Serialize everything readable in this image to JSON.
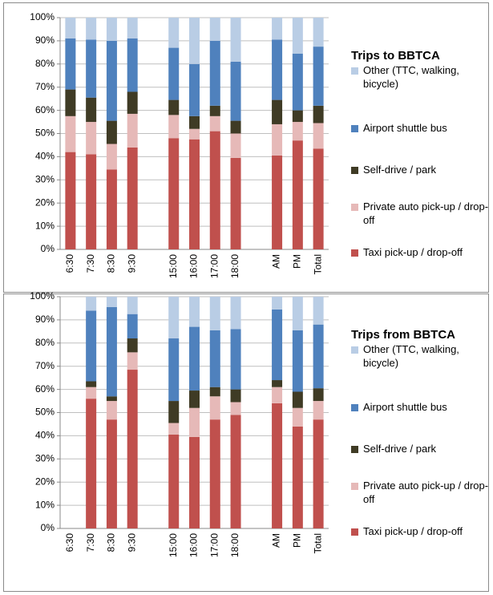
{
  "chart_data": [
    {
      "type": "bar",
      "stacked": true,
      "title": "Trips to BBTCA",
      "legend": "right",
      "grid": true,
      "categories": [
        "6:30",
        "7:30",
        "8:30",
        "9:30",
        null,
        "15:00",
        "16:00",
        "17:00",
        "18:00",
        null,
        "AM",
        "PM",
        "Total"
      ],
      "ylim": [
        0,
        100
      ],
      "yticks": [
        {
          "value": 0,
          "label": "0%"
        },
        {
          "value": 10,
          "label": "10%"
        },
        {
          "value": 20,
          "label": "20%"
        },
        {
          "value": 30,
          "label": "30%"
        },
        {
          "value": 40,
          "label": "40%"
        },
        {
          "value": 50,
          "label": "50%"
        },
        {
          "value": 60,
          "label": "60%"
        },
        {
          "value": 70,
          "label": "70%"
        },
        {
          "value": 80,
          "label": "80%"
        },
        {
          "value": 90,
          "label": "90%"
        },
        {
          "value": 100,
          "label": "100%"
        }
      ],
      "series": [
        {
          "name": "Taxi pick-up / drop-off",
          "color": "#c0504d",
          "values": [
            42,
            41,
            34.5,
            44,
            null,
            48,
            47.5,
            51,
            39.5,
            null,
            40.5,
            47,
            43.5
          ]
        },
        {
          "name": "Private auto pick-up / drop-off",
          "color": "#e6b9b8",
          "values": [
            15.5,
            14,
            11,
            14.5,
            null,
            10,
            4.5,
            6.5,
            10.5,
            null,
            13.5,
            8,
            11
          ]
        },
        {
          "name": "Self-drive / park",
          "color": "#3f3b25",
          "values": [
            11.5,
            10.5,
            10,
            9.5,
            null,
            6.5,
            5.5,
            4.5,
            5.5,
            null,
            10.5,
            5,
            7.5
          ]
        },
        {
          "name": "Airport shuttle bus",
          "color": "#4f81bd",
          "values": [
            22,
            25,
            34.5,
            23,
            null,
            22.5,
            22.5,
            28,
            25.5,
            null,
            26,
            24.5,
            25.5
          ]
        },
        {
          "name": "Other (TTC, walking, bicycle)",
          "color": "#b9cde5",
          "values": [
            9,
            9.5,
            10,
            9,
            null,
            13,
            20,
            10,
            19,
            null,
            9.5,
            15.5,
            12.5
          ]
        }
      ]
    },
    {
      "type": "bar",
      "stacked": true,
      "title": "Trips from BBTCA",
      "legend": "right",
      "grid": true,
      "categories": [
        "6:30",
        "7:30",
        "8:30",
        "9:30",
        null,
        "15:00",
        "16:00",
        "17:00",
        "18:00",
        null,
        "AM",
        "PM",
        "Total"
      ],
      "ylim": [
        0,
        100
      ],
      "yticks": [
        {
          "value": 0,
          "label": "0%"
        },
        {
          "value": 10,
          "label": "10%"
        },
        {
          "value": 20,
          "label": "20%"
        },
        {
          "value": 30,
          "label": "30%"
        },
        {
          "value": 40,
          "label": "40%"
        },
        {
          "value": 50,
          "label": "50%"
        },
        {
          "value": 60,
          "label": "60%"
        },
        {
          "value": 70,
          "label": "70%"
        },
        {
          "value": 80,
          "label": "80%"
        },
        {
          "value": 90,
          "label": "90%"
        },
        {
          "value": 100,
          "label": "100%"
        }
      ],
      "series": [
        {
          "name": "Taxi pick-up / drop-off",
          "color": "#c0504d",
          "values": [
            null,
            56,
            47,
            68.5,
            null,
            40.5,
            39.5,
            47,
            49,
            null,
            54,
            44,
            47
          ]
        },
        {
          "name": "Private auto pick-up / drop-off",
          "color": "#e6b9b8",
          "values": [
            null,
            5,
            8,
            7.5,
            null,
            5,
            12.5,
            10,
            5.5,
            null,
            7,
            8,
            8
          ]
        },
        {
          "name": "Self-drive / park",
          "color": "#3f3b25",
          "values": [
            null,
            2.5,
            2,
            6,
            null,
            9.5,
            7.5,
            4,
            5.5,
            null,
            3,
            7,
            5.5
          ]
        },
        {
          "name": "Airport shuttle bus",
          "color": "#4f81bd",
          "values": [
            null,
            30.5,
            38.5,
            10.5,
            null,
            27,
            27.5,
            24.5,
            26,
            null,
            30.5,
            26.5,
            27.5
          ]
        },
        {
          "name": "Other (TTC, walking, bicycle)",
          "color": "#b9cde5",
          "values": [
            null,
            6,
            4.5,
            7.5,
            null,
            18,
            13,
            14.5,
            14,
            null,
            5.5,
            14.5,
            12
          ]
        }
      ]
    }
  ]
}
